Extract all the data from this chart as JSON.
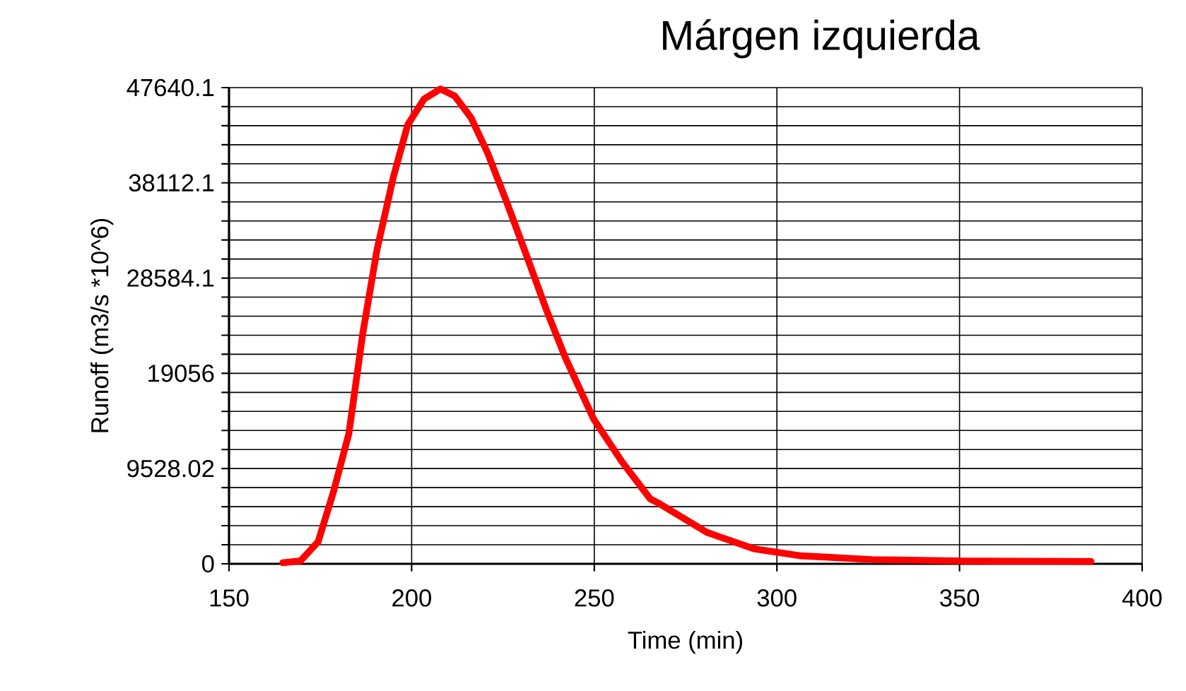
{
  "chart_data": {
    "type": "line",
    "title": "Márgen izquierda",
    "xlabel": "Time (min)",
    "ylabel": "Runoff (m3/s *10^6)",
    "xlim": [
      150,
      400
    ],
    "xticks": [
      150,
      200,
      250,
      300,
      350,
      400
    ],
    "ylim": [
      0,
      47640.1
    ],
    "yticks": [
      0,
      {
        "value": 1905.6,
        "label": null
      },
      {
        "value": 3811.2,
        "label": null
      },
      {
        "value": 5716.8,
        "label": null
      },
      {
        "value": 7622.4,
        "label": null
      },
      9528.02,
      {
        "value": 11433.6,
        "label": null
      },
      {
        "value": 13339.2,
        "label": null
      },
      {
        "value": 15244.8,
        "label": null
      },
      {
        "value": 17150.4,
        "label": null
      },
      19056,
      {
        "value": 20961.6,
        "label": null
      },
      {
        "value": 22867.3,
        "label": null
      },
      {
        "value": 24772.9,
        "label": null
      },
      {
        "value": 26678.5,
        "label": null
      },
      28584.1,
      {
        "value": 30489.7,
        "label": null
      },
      {
        "value": 32395.3,
        "label": null
      },
      {
        "value": 34300.9,
        "label": null
      },
      {
        "value": 36206.5,
        "label": null
      },
      38112.1,
      {
        "value": 40017.7,
        "label": null
      },
      {
        "value": 41923.3,
        "label": null
      },
      {
        "value": 43828.9,
        "label": null
      },
      {
        "value": 45734.5,
        "label": null
      },
      47640.1
    ],
    "grid": true,
    "marker": "none",
    "line_style": "solid",
    "series": [
      {
        "color": "#ff0000",
        "x": [
          164.7,
          169.6,
          174.4,
          178.6,
          182.8,
          186.6,
          190.5,
          195.0,
          198.9,
          203.4,
          207.9,
          211.8,
          216.3,
          220.8,
          226.0,
          231.8,
          237.0,
          242.1,
          249.8,
          257.6,
          265.3,
          267.9,
          280.8,
          293.7,
          306.6,
          326,
          351.7,
          386
        ],
        "values": [
          100,
          300,
          2200,
          7200,
          13000,
          23000,
          31400,
          38700,
          43900,
          46500,
          47500,
          46800,
          44600,
          41100,
          36200,
          30500,
          25300,
          20600,
          14500,
          10200,
          6500,
          6000,
          3150,
          1500,
          800,
          420,
          280,
          240
        ]
      }
    ]
  }
}
